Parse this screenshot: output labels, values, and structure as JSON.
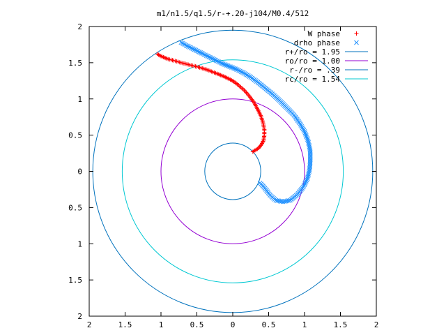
{
  "chart_data": {
    "type": "scatter",
    "title": "m1/n1.5/q1.5/r-+.20-j104/M0.4/512",
    "xlabel": "",
    "ylabel": "",
    "xlim": [
      -2,
      2
    ],
    "ylim": [
      -2,
      2
    ],
    "grid": false,
    "legend_position": "top-right",
    "x_ticks": [
      {
        "value": -2,
        "label": "2"
      },
      {
        "value": -1.5,
        "label": "1.5"
      },
      {
        "value": -1,
        "label": "1"
      },
      {
        "value": -0.5,
        "label": "0.5"
      },
      {
        "value": 0,
        "label": "0"
      },
      {
        "value": 0.5,
        "label": "0.5"
      },
      {
        "value": 1,
        "label": "1"
      },
      {
        "value": 1.5,
        "label": "1.5"
      },
      {
        "value": 2,
        "label": "2"
      }
    ],
    "y_ticks": [
      {
        "value": 2,
        "label": "2"
      },
      {
        "value": 1.5,
        "label": "1.5"
      },
      {
        "value": 1,
        "label": "1"
      },
      {
        "value": 0.5,
        "label": "0.5"
      },
      {
        "value": 0,
        "label": "0"
      },
      {
        "value": -0.5,
        "label": "0.5"
      },
      {
        "value": -1,
        "label": "1"
      },
      {
        "value": -1.5,
        "label": "1.5"
      },
      {
        "value": -2,
        "label": "2"
      }
    ],
    "circles": [
      {
        "name": "r+/ro = 1.95",
        "radius": 1.95,
        "color": "#0072bd"
      },
      {
        "name": "ro/ro = 1.00",
        "radius": 1.0,
        "color": "#9400d3"
      },
      {
        "name": "r-/ro = .39",
        "radius": 0.39,
        "color": "#0072bd"
      },
      {
        "name": "rc/ro = 1.54",
        "radius": 1.54,
        "color": "#00c8d2"
      }
    ],
    "series": [
      {
        "name": "W phase",
        "marker": "+",
        "color": "#ff0000",
        "points": [
          [
            -1.05,
            1.62
          ],
          [
            -1.0,
            1.59
          ],
          [
            -0.95,
            1.57
          ],
          [
            -0.9,
            1.55
          ],
          [
            -0.82,
            1.53
          ],
          [
            -0.72,
            1.5
          ],
          [
            -0.6,
            1.47
          ],
          [
            -0.48,
            1.44
          ],
          [
            -0.35,
            1.4
          ],
          [
            -0.22,
            1.35
          ],
          [
            -0.1,
            1.3
          ],
          [
            0.0,
            1.25
          ],
          [
            0.08,
            1.19
          ],
          [
            0.16,
            1.12
          ],
          [
            0.23,
            1.04
          ],
          [
            0.29,
            0.96
          ],
          [
            0.34,
            0.87
          ],
          [
            0.39,
            0.77
          ],
          [
            0.42,
            0.68
          ],
          [
            0.44,
            0.58
          ],
          [
            0.44,
            0.5
          ],
          [
            0.43,
            0.43
          ],
          [
            0.4,
            0.37
          ],
          [
            0.36,
            0.32
          ],
          [
            0.31,
            0.29
          ],
          [
            0.28,
            0.27
          ]
        ]
      },
      {
        "name": "drho phase",
        "marker": "x",
        "color": "#1e90ff",
        "points": [
          [
            -0.72,
            1.78
          ],
          [
            -0.65,
            1.74
          ],
          [
            -0.55,
            1.69
          ],
          [
            -0.45,
            1.64
          ],
          [
            -0.35,
            1.59
          ],
          [
            -0.25,
            1.54
          ],
          [
            -0.15,
            1.49
          ],
          [
            -0.05,
            1.45
          ],
          [
            0.05,
            1.41
          ],
          [
            0.15,
            1.36
          ],
          [
            0.25,
            1.3
          ],
          [
            0.35,
            1.23
          ],
          [
            0.45,
            1.15
          ],
          [
            0.55,
            1.07
          ],
          [
            0.65,
            0.98
          ],
          [
            0.75,
            0.88
          ],
          [
            0.85,
            0.78
          ],
          [
            0.93,
            0.67
          ],
          [
            1.0,
            0.55
          ],
          [
            1.05,
            0.42
          ],
          [
            1.08,
            0.28
          ],
          [
            1.08,
            0.14
          ],
          [
            1.07,
            0.02
          ],
          [
            1.04,
            -0.1
          ],
          [
            0.98,
            -0.22
          ],
          [
            0.9,
            -0.32
          ],
          [
            0.8,
            -0.4
          ],
          [
            0.7,
            -0.42
          ],
          [
            0.6,
            -0.4
          ],
          [
            0.52,
            -0.33
          ],
          [
            0.46,
            -0.25
          ],
          [
            0.41,
            -0.19
          ],
          [
            0.38,
            -0.16
          ]
        ]
      }
    ]
  }
}
